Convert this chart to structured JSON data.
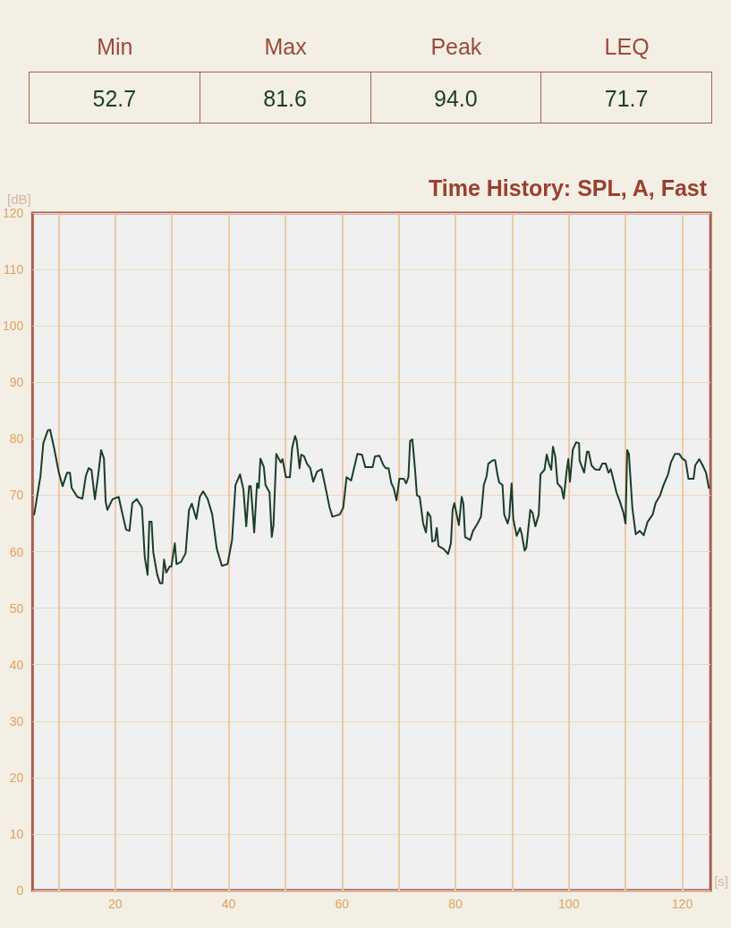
{
  "chart_data": [
    {
      "type": "other",
      "categories": [
        "Min",
        "Max",
        "Peak",
        "LEQ"
      ],
      "annotations": [
        "52.7",
        "81.6",
        "94.0",
        "71.7"
      ]
    },
    {
      "type": "line",
      "title": "Time History: SPL, A, Fast",
      "xlabel": "[s]",
      "ylabel": "[dB]",
      "x": [
        5.7,
        6.2,
        6.8,
        7.3,
        8.1,
        8.5,
        9.2,
        10.0,
        10.7,
        11.5,
        12.0,
        12.3,
        13.3,
        14.2,
        14.8,
        15.3,
        15.8,
        16.4,
        17.0,
        17.5,
        18.0,
        18.3,
        18.6,
        19.5,
        20.6,
        21.1,
        21.9,
        22.5,
        23.0,
        23.8,
        24.7,
        25.2,
        25.7,
        26.0,
        26.4,
        26.7,
        27.4,
        27.9,
        28.3,
        28.6,
        29.0,
        29.6,
        29.9,
        30.5,
        30.8,
        31.6,
        32.4,
        33.0,
        33.5,
        34.3,
        34.9,
        35.5,
        36.3,
        37.1,
        37.9,
        38.8,
        39.8,
        40.6,
        41.2,
        42.0,
        42.6,
        43.1,
        43.6,
        43.9,
        44.5,
        45.0,
        45.3,
        45.6,
        46.2,
        46.5,
        47.2,
        47.6,
        47.9,
        48.4,
        49.2,
        49.5,
        50.1,
        50.8,
        51.2,
        51.7,
        52.0,
        52.5,
        52.8,
        53.3,
        53.8,
        54.4,
        54.9,
        55.6,
        56.4,
        57.2,
        57.8,
        58.3,
        59.6,
        60.2,
        60.8,
        61.6,
        62.7,
        63.5,
        64.1,
        65.4,
        65.8,
        66.6,
        67.3,
        67.7,
        68.2,
        68.7,
        69.1,
        69.6,
        70.1,
        70.9,
        71.3,
        71.7,
        72.0,
        72.4,
        72.9,
        73.2,
        73.7,
        74.3,
        74.8,
        75.1,
        75.6,
        75.9,
        76.4,
        76.7,
        77.0,
        77.9,
        78.7,
        79.2,
        79.5,
        79.8,
        80.6,
        81.1,
        81.4,
        81.7,
        82.6,
        83.1,
        83.9,
        84.5,
        85.0,
        85.5,
        85.8,
        86.6,
        87.0,
        87.4,
        87.7,
        88.3,
        88.6,
        89.2,
        89.5,
        89.9,
        90.2,
        90.8,
        91.4,
        91.7,
        92.2,
        92.5,
        93.2,
        93.6,
        94.1,
        94.7,
        95.0,
        95.7,
        96.1,
        96.5,
        96.9,
        97.2,
        97.6,
        98.0,
        98.7,
        99.1,
        99.6,
        99.9,
        100.2,
        100.7,
        101.3,
        101.8,
        101.9,
        102.7,
        103.2,
        103.5,
        104.0,
        104.6,
        105.4,
        105.9,
        106.5,
        107.0,
        107.4,
        107.9,
        108.4,
        109.0,
        109.6,
        110.0,
        110.3,
        110.6,
        111.2,
        111.8,
        112.5,
        113.2,
        113.9,
        114.8,
        115.3,
        116.1,
        116.7,
        117.5,
        118.0,
        118.7,
        119.5,
        120.0,
        120.6,
        121.1,
        122.0,
        122.3,
        123.0,
        123.6,
        124.2,
        124.7
      ],
      "series": [
        {
          "color": "#1a3d28",
          "values": [
            66.6,
            69.7,
            73.4,
            79.2,
            81.5,
            81.6,
            78.4,
            74.2,
            71.6,
            74,
            74,
            71.3,
            69.7,
            69.4,
            73.4,
            74.8,
            74.5,
            69.3,
            73.7,
            78,
            76.5,
            68.9,
            67.4,
            69.3,
            69.7,
            67.4,
            63.9,
            63.7,
            68.6,
            69.3,
            67.8,
            59,
            55.9,
            65.3,
            65.3,
            59.9,
            55.9,
            54.4,
            54.4,
            58.6,
            56.3,
            57.4,
            57.4,
            61.5,
            57.8,
            58.2,
            59.7,
            67.4,
            68.5,
            65.8,
            69.7,
            70.7,
            69.3,
            66.6,
            60.5,
            57.5,
            57.8,
            62.1,
            71.8,
            73.7,
            71,
            64.5,
            71.6,
            71.6,
            63.4,
            72.1,
            71.3,
            76.5,
            75,
            71.8,
            70.5,
            62.6,
            64.7,
            77.3,
            75.8,
            76.4,
            73.2,
            73.2,
            78.4,
            80.5,
            79.6,
            74.8,
            77.2,
            76.9,
            75.6,
            74.8,
            72.4,
            74.2,
            74.6,
            70.8,
            67.8,
            66.2,
            66.6,
            67.8,
            73.2,
            72.6,
            77.3,
            77.2,
            75,
            75,
            76.9,
            77,
            75.3,
            74.8,
            74.8,
            72.1,
            71.3,
            69.1,
            72.9,
            72.9,
            72.1,
            73.2,
            79.6,
            79.9,
            74.2,
            70,
            69.7,
            65,
            63.4,
            67,
            66.2,
            61.8,
            62,
            64.2,
            61,
            60.5,
            59.6,
            61.5,
            67.4,
            68.6,
            64.7,
            69.7,
            68.5,
            62.6,
            62.1,
            63.7,
            65,
            66.2,
            71.8,
            73.4,
            75.6,
            76.2,
            76.2,
            73.7,
            72.3,
            71.8,
            66.6,
            65,
            66.2,
            72.1,
            65.8,
            62.8,
            64.2,
            63.1,
            60.2,
            60.7,
            67.4,
            66.9,
            64.5,
            66.6,
            73.7,
            74.5,
            77.2,
            75.6,
            74.5,
            78.6,
            76.9,
            72.1,
            71.3,
            69.4,
            74.2,
            76.4,
            72.4,
            78.1,
            79.4,
            79.2,
            76.1,
            74,
            77.7,
            77.7,
            75.3,
            74.6,
            74.5,
            75.6,
            75.6,
            74,
            74.6,
            72.6,
            70.5,
            68.9,
            67,
            65,
            78,
            77.3,
            67.8,
            63.1,
            63.7,
            62.9,
            65.3,
            66.6,
            68.6,
            70,
            71.8,
            73.7,
            75.8,
            77.3,
            77.3,
            76.5,
            76.1,
            72.9,
            72.9,
            75.3,
            76.4,
            75.3,
            74,
            71.3
          ]
        }
      ],
      "xlim": [
        5.4,
        125
      ],
      "xticks": [
        {
          "value": 10,
          "label": null
        },
        20,
        {
          "value": 30,
          "label": null
        },
        40,
        {
          "value": 50,
          "label": null
        },
        60,
        {
          "value": 70,
          "label": null
        },
        80,
        {
          "value": 90,
          "label": null
        },
        100,
        {
          "value": 110,
          "label": null
        },
        120
      ],
      "ylim": [
        0,
        120
      ],
      "yticks": [
        0,
        10,
        20,
        30,
        40,
        50,
        60,
        70,
        80,
        90,
        100,
        110,
        120
      ],
      "grid": true,
      "marker": "none",
      "line_style": "solid"
    }
  ]
}
